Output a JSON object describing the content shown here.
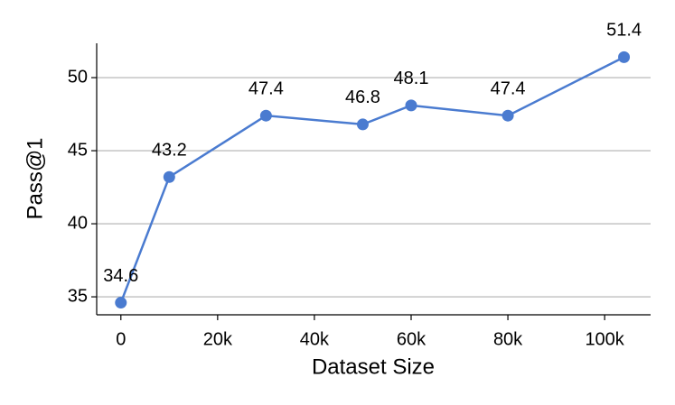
{
  "chart_data": {
    "type": "line",
    "x_label": "Dataset Size",
    "y_label": "Pass@1",
    "x": [
      0,
      10000,
      30000,
      50000,
      60000,
      80000,
      104000
    ],
    "series": [
      {
        "color": "#4a7bd0",
        "values": [
          34.6,
          43.2,
          47.4,
          46.8,
          48.1,
          47.4,
          51.4
        ]
      }
    ],
    "xlim": [
      -5000,
      109500
    ],
    "xticks": [
      0,
      {
        "value": 20000,
        "label": "20k"
      },
      {
        "value": 40000,
        "label": "40k"
      },
      {
        "value": 60000,
        "label": "60k"
      },
      {
        "value": 80000,
        "label": "80k"
      },
      {
        "value": 100000,
        "label": "100k"
      }
    ],
    "ylim": [
      33.77,
      52.35
    ],
    "yticks": [
      35,
      40,
      45,
      50
    ],
    "grid": true
  }
}
